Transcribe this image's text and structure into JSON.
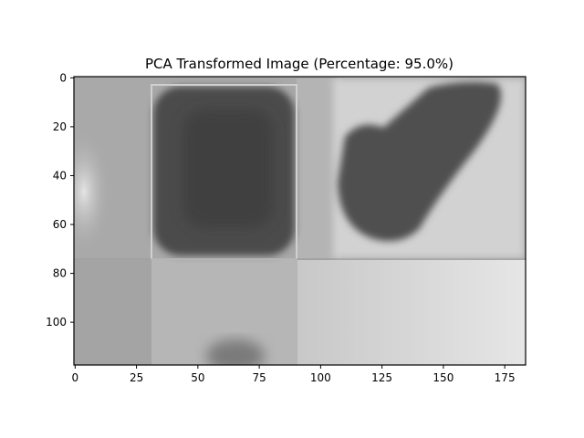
{
  "chart_data": {
    "type": "heatmap",
    "title": "PCA Transformed Image (Percentage: 95.0%)",
    "xlabel": "",
    "ylabel": "",
    "image_shape": [
      118,
      184
    ],
    "colormap": "gray",
    "xlim": [
      -0.5,
      183.5
    ],
    "ylim": [
      117.5,
      -0.5
    ],
    "xticks": [
      0,
      25,
      50,
      75,
      100,
      125,
      150,
      175
    ],
    "yticks": [
      0,
      20,
      40,
      60,
      80,
      100
    ],
    "grid": false,
    "legend": "none"
  }
}
